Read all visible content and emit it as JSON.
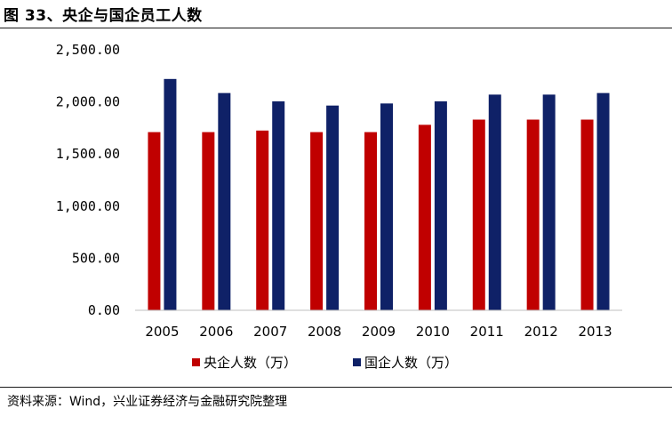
{
  "header": {
    "title": "图 33、央企与国企员工人数"
  },
  "footer": {
    "source": "资料来源：Wind，兴业证券经济与金融研究院整理"
  },
  "chart_data": {
    "type": "bar",
    "categories": [
      "2005",
      "2006",
      "2007",
      "2008",
      "2009",
      "2010",
      "2011",
      "2012",
      "2013"
    ],
    "series": [
      {
        "name": "央企人数（万）",
        "color": "#C00000",
        "values": [
          1710,
          1710,
          1725,
          1710,
          1710,
          1780,
          1830,
          1830,
          1830
        ]
      },
      {
        "name": "国企人数（万）",
        "color": "#0F2167",
        "values": [
          2220,
          2085,
          2005,
          1965,
          1985,
          2005,
          2070,
          2070,
          2085
        ]
      }
    ],
    "yticks": [
      "0.00",
      "500.00",
      "1,000.00",
      "1,500.00",
      "2,000.00",
      "2,500.00"
    ],
    "ylim": [
      0,
      2500
    ],
    "grid": false,
    "legend": "bottom"
  }
}
